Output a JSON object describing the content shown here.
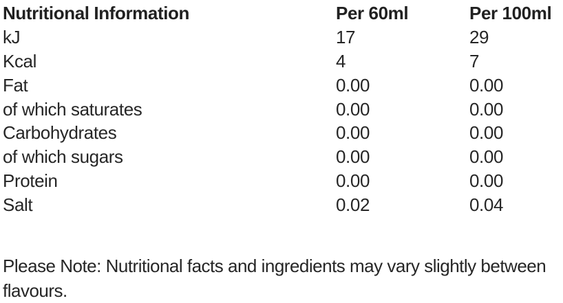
{
  "table": {
    "header": {
      "label": "Nutritional Information",
      "per60": "Per 60ml",
      "per100": "Per 100ml"
    },
    "rows": [
      {
        "label": "kJ",
        "per60": "17",
        "per100": "29"
      },
      {
        "label": "Kcal",
        "per60": "4",
        "per100": "7"
      },
      {
        "label": "Fat",
        "per60": "0.00",
        "per100": "0.00"
      },
      {
        "label": "of which saturates",
        "per60": "0.00",
        "per100": "0.00"
      },
      {
        "label": "Carbohydrates",
        "per60": "0.00",
        "per100": "0.00"
      },
      {
        "label": "of which sugars",
        "per60": "0.00",
        "per100": "0.00"
      },
      {
        "label": "Protein",
        "per60": "0.00",
        "per100": "0.00"
      },
      {
        "label": "Salt",
        "per60": "0.02",
        "per100": "0.04"
      }
    ]
  },
  "note": {
    "text": "Please Note: Nutritional facts and ingredients may vary slightly between flavours."
  },
  "colors": {
    "text": "#262626",
    "background": "#ffffff"
  }
}
